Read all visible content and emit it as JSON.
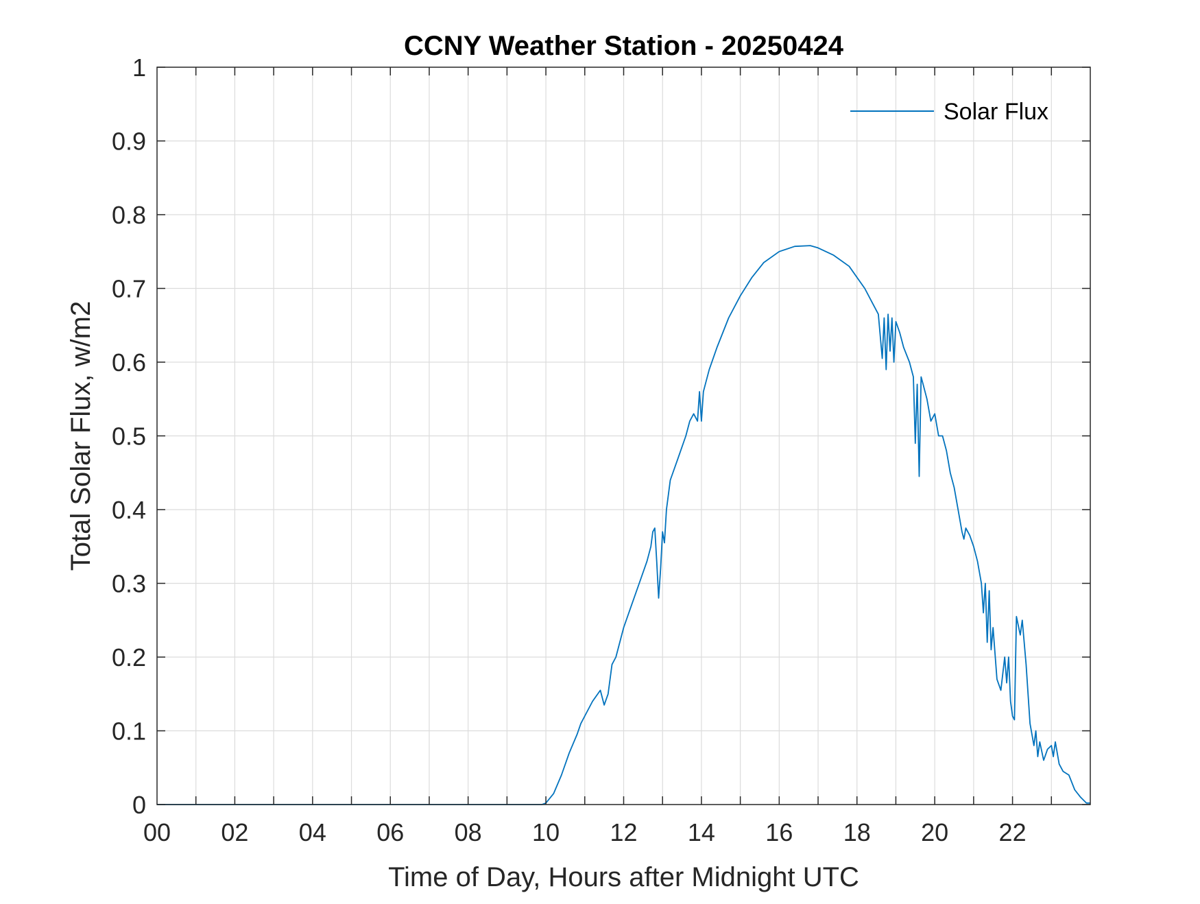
{
  "chart_data": {
    "type": "line",
    "title": "CCNY Weather Station - 20250424",
    "xlabel": "Time of Day, Hours after Midnight UTC",
    "ylabel": "Total Solar Flux, w/m2",
    "xlim": [
      0,
      24
    ],
    "ylim": [
      0,
      1
    ],
    "x_ticks": [
      0,
      2,
      4,
      6,
      8,
      10,
      12,
      14,
      16,
      18,
      20,
      22
    ],
    "x_tick_labels": [
      "00",
      "02",
      "04",
      "06",
      "08",
      "10",
      "12",
      "14",
      "16",
      "18",
      "20",
      "22"
    ],
    "y_ticks": [
      0,
      0.1,
      0.2,
      0.3,
      0.4,
      0.5,
      0.6,
      0.7,
      0.8,
      0.9,
      1
    ],
    "y_tick_labels": [
      "0",
      "0.1",
      "0.2",
      "0.3",
      "0.4",
      "0.5",
      "0.6",
      "0.7",
      "0.8",
      "0.9",
      "1"
    ],
    "grid": true,
    "legend": {
      "position": "top-right",
      "entries": [
        "Solar Flux"
      ]
    },
    "colors": {
      "series": "#0072BD",
      "axes": "#262626",
      "grid": "#dcdcdc"
    },
    "series": [
      {
        "name": "Solar Flux",
        "x": [
          0,
          9.9,
          10.0,
          10.2,
          10.4,
          10.6,
          10.8,
          10.9,
          11.0,
          11.2,
          11.4,
          11.5,
          11.6,
          11.7,
          11.8,
          12.0,
          12.2,
          12.4,
          12.6,
          12.7,
          12.75,
          12.8,
          12.85,
          12.9,
          12.95,
          13.0,
          13.05,
          13.1,
          13.2,
          13.4,
          13.6,
          13.7,
          13.8,
          13.9,
          13.95,
          14.0,
          14.05,
          14.1,
          14.2,
          14.4,
          14.7,
          15.0,
          15.3,
          15.6,
          16.0,
          16.4,
          16.8,
          17.0,
          17.4,
          17.8,
          18.2,
          18.55,
          18.65,
          18.7,
          18.75,
          18.8,
          18.85,
          18.9,
          18.95,
          19.0,
          19.1,
          19.2,
          19.35,
          19.45,
          19.5,
          19.55,
          19.6,
          19.65,
          19.7,
          19.8,
          19.9,
          20.0,
          20.1,
          20.2,
          20.3,
          20.4,
          20.5,
          20.6,
          20.7,
          20.75,
          20.8,
          20.9,
          21.0,
          21.1,
          21.2,
          21.25,
          21.3,
          21.35,
          21.4,
          21.45,
          21.5,
          21.6,
          21.7,
          21.8,
          21.85,
          21.9,
          21.95,
          22.0,
          22.05,
          22.1,
          22.2,
          22.25,
          22.3,
          22.35,
          22.45,
          22.55,
          22.6,
          22.65,
          22.7,
          22.8,
          22.9,
          23.0,
          23.05,
          23.1,
          23.2,
          23.3,
          23.45,
          23.6,
          23.75,
          23.9,
          24.0
        ],
        "values": [
          0,
          0,
          0.002,
          0.015,
          0.04,
          0.07,
          0.095,
          0.11,
          0.12,
          0.14,
          0.155,
          0.135,
          0.15,
          0.19,
          0.2,
          0.24,
          0.27,
          0.3,
          0.33,
          0.35,
          0.37,
          0.375,
          0.33,
          0.28,
          0.32,
          0.37,
          0.355,
          0.4,
          0.44,
          0.47,
          0.5,
          0.52,
          0.53,
          0.52,
          0.56,
          0.52,
          0.56,
          0.57,
          0.59,
          0.62,
          0.66,
          0.69,
          0.715,
          0.735,
          0.75,
          0.757,
          0.758,
          0.755,
          0.745,
          0.73,
          0.7,
          0.665,
          0.605,
          0.66,
          0.59,
          0.665,
          0.615,
          0.66,
          0.6,
          0.655,
          0.64,
          0.62,
          0.6,
          0.58,
          0.49,
          0.57,
          0.445,
          0.58,
          0.57,
          0.55,
          0.52,
          0.53,
          0.5,
          0.5,
          0.48,
          0.45,
          0.43,
          0.4,
          0.37,
          0.36,
          0.375,
          0.365,
          0.35,
          0.33,
          0.3,
          0.26,
          0.3,
          0.22,
          0.29,
          0.21,
          0.24,
          0.17,
          0.155,
          0.2,
          0.165,
          0.2,
          0.14,
          0.12,
          0.115,
          0.255,
          0.23,
          0.25,
          0.22,
          0.19,
          0.11,
          0.08,
          0.1,
          0.065,
          0.085,
          0.06,
          0.075,
          0.08,
          0.065,
          0.085,
          0.055,
          0.045,
          0.04,
          0.02,
          0.01,
          0.002,
          0.002
        ]
      }
    ]
  }
}
